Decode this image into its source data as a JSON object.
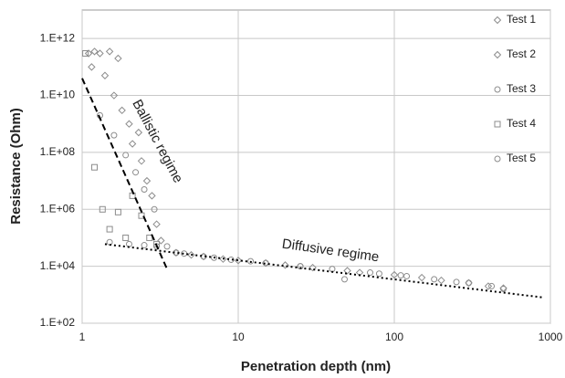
{
  "chart_data": {
    "type": "scatter",
    "xlabel": "Penetration depth (nm)",
    "ylabel": "Resistance (Ohm)",
    "xscale": "log",
    "yscale": "log",
    "xlim": [
      1,
      1000
    ],
    "ylim": [
      100,
      10000000000000
    ],
    "xticks": [
      1,
      10,
      100,
      1000
    ],
    "yticks": [
      {
        "value": 100,
        "label": "1.E+02"
      },
      {
        "value": 10000,
        "label": "1.E+04"
      },
      {
        "value": 1000000,
        "label": "1.E+06"
      },
      {
        "value": 100000000,
        "label": "1.E+08"
      },
      {
        "value": 10000000000,
        "label": "1.E+10"
      },
      {
        "value": 1000000000000,
        "label": "1.E+12"
      }
    ],
    "grid": true,
    "legend": "upper right",
    "series": [
      {
        "name": "Test 1",
        "color": "#8c8c8c",
        "marker": "diamond",
        "x": [
          1.1,
          1.2,
          1.3,
          1.5,
          1.7,
          2.0,
          2.3,
          2.6,
          3.0,
          4,
          6,
          10,
          20,
          50,
          100,
          200,
          400
        ],
        "values": [
          300000000000,
          350000000000,
          300000000000,
          350000000000,
          200000000000,
          1000000000,
          500000000,
          10000000,
          300000,
          30000,
          22000,
          16000,
          11000,
          7000,
          5000,
          3200,
          2000
        ]
      },
      {
        "name": "Test 2",
        "color": "#8c8c8c",
        "marker": "diamond",
        "x": [
          1.15,
          1.4,
          1.6,
          1.8,
          2.1,
          2.4,
          2.8,
          3.2,
          5,
          8,
          15,
          30,
          60,
          150,
          300,
          500
        ],
        "values": [
          100000000000,
          50000000000,
          10000000000,
          3000000000,
          200000000,
          50000000,
          3000000,
          80000,
          25000,
          18000,
          13000,
          9000,
          6000,
          4000,
          2600,
          1700
        ]
      },
      {
        "name": "Test 3",
        "color": "#8c8c8c",
        "marker": "circle",
        "x": [
          1.3,
          1.6,
          1.9,
          2.2,
          2.5,
          2.9,
          3.5,
          4.5,
          7,
          12,
          25,
          48,
          80,
          120,
          250
        ],
        "values": [
          2000000000,
          400000000,
          80000000,
          20000000,
          5000000,
          1000000,
          50000,
          28000,
          20000,
          15000,
          10000,
          3500,
          5500,
          4500,
          2800
        ]
      },
      {
        "name": "Test 4",
        "color": "#8c8c8c",
        "marker": "square",
        "x": [
          1.05,
          1.2,
          1.35,
          1.5,
          1.7,
          1.9,
          2.1,
          2.4,
          2.7,
          3.0
        ],
        "values": [
          300000000000,
          30000000,
          1000000,
          200000,
          800000,
          100000,
          3000000,
          600000,
          100000,
          60000
        ]
      },
      {
        "name": "Test 5",
        "color": "#8c8c8c",
        "marker": "circle",
        "x": [
          1.5,
          2,
          2.5,
          3,
          4,
          6,
          9,
          15,
          25,
          40,
          70,
          110,
          180,
          300,
          420,
          500
        ],
        "values": [
          70000,
          60000,
          55000,
          50000,
          30000,
          22000,
          17000,
          13000,
          10000,
          8000,
          6000,
          4800,
          3500,
          2600,
          2000,
          1600
        ]
      }
    ],
    "fit_lines": [
      {
        "style": "dashed",
        "color": "#000000",
        "x": [
          1,
          3.5
        ],
        "values": [
          40000000000,
          8000
        ]
      },
      {
        "style": "dotted",
        "color": "#000000",
        "x": [
          1.4,
          900
        ],
        "values": [
          60000,
          800
        ]
      }
    ],
    "annotations": [
      "Ballistic regime",
      "Diffusive regime"
    ]
  }
}
